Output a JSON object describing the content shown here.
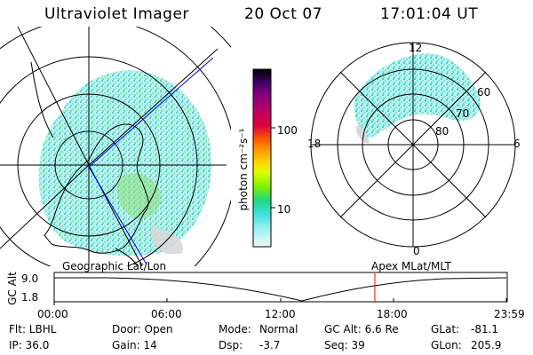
{
  "header": {
    "instrument": "Ultraviolet Imager",
    "date": "20 Oct 07",
    "time": "17:01:04 UT"
  },
  "geo_map": {
    "label": "Geographic Lat/Lon"
  },
  "polar_map": {
    "label": "Apex MLat/MLT",
    "mlt_labels": [
      "12",
      "18",
      "6",
      "0"
    ],
    "lat_labels": [
      "60",
      "70",
      "80"
    ]
  },
  "colorbar": {
    "unit": "photon cm⁻²s⁻¹",
    "tick_labels": [
      "100",
      "10"
    ],
    "colors": [
      "#000000",
      "#3a0060",
      "#800080",
      "#b00070",
      "#e00040",
      "#ff6000",
      "#ffa000",
      "#ffd000",
      "#e0ff00",
      "#a0f000",
      "#40e000",
      "#00d0a0",
      "#40e0e0",
      "#a0f0f0",
      "#e8f8f8"
    ]
  },
  "orbit": {
    "axis_title": "GC Alt",
    "y_ticks": [
      "9.0",
      "1.8"
    ],
    "x_ticks": [
      "00:00",
      "06:00",
      "12:00",
      "18:00",
      "23:59"
    ],
    "marker_time_hours": 17.02
  },
  "info": {
    "row1": {
      "filter": "Flt: LBHL",
      "door": "Door: Open",
      "mode_label": "Mode:",
      "mode_value": "Normal",
      "gc_alt": "GC Alt: 6.6 Re",
      "glat_label": "GLat:",
      "glat_value": "-81.1"
    },
    "row2": {
      "ip": "IP: 36.0",
      "gain": "Gain: 14",
      "dsp_label": "Dsp:",
      "dsp_value": "-3.7",
      "seq": "Seq: 39",
      "glon_label": "GLon:",
      "glon_value": "205.9"
    }
  }
}
